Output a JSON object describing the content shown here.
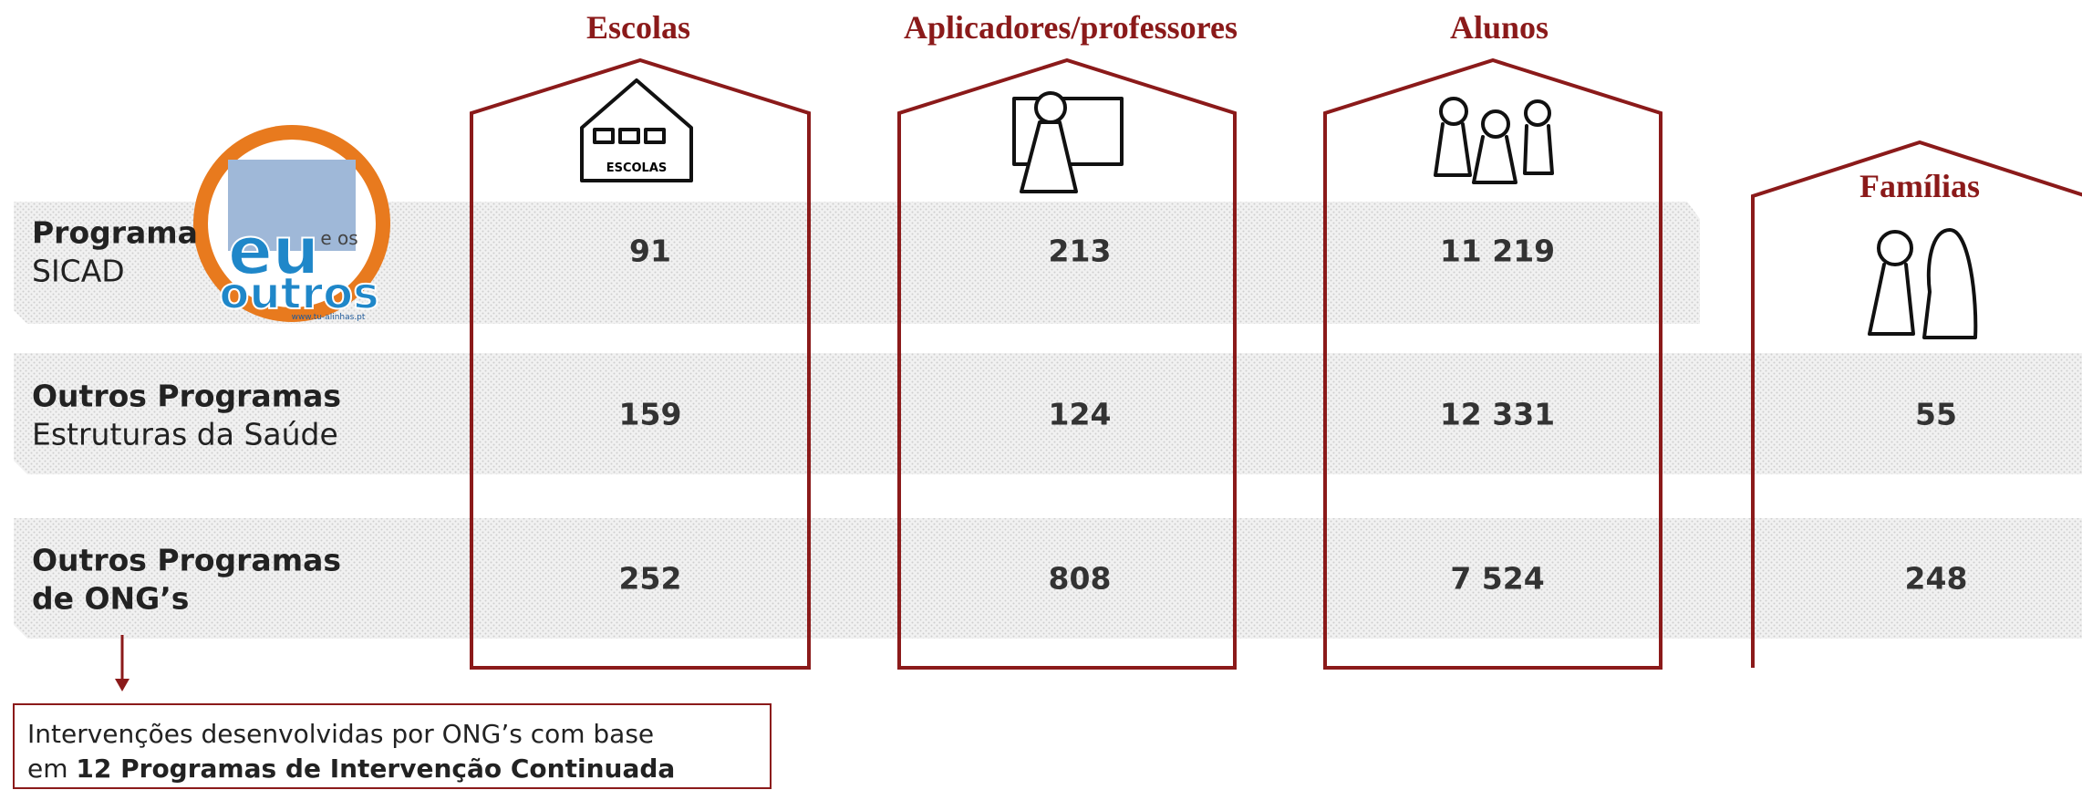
{
  "columns": [
    "Escolas",
    "Aplicadores/professores",
    "Alunos",
    "Famílias"
  ],
  "icon_label": "ESCOLAS",
  "logo": {
    "top": "e os",
    "main": "eu",
    "bottom": "outros",
    "url": "www.tu-alinhas.pt"
  },
  "rows": [
    {
      "title": "Programa",
      "subtitle": "SICAD",
      "values": [
        "91",
        "213",
        "11 219",
        null
      ]
    },
    {
      "title": "Outros Programas",
      "subtitle": "Estruturas da Saúde",
      "values": [
        "159",
        "124",
        "12 331",
        "55"
      ]
    },
    {
      "title": "Outros Programas",
      "subtitle": "de ONG’s",
      "values": [
        "252",
        "808",
        "7 524",
        "248"
      ]
    }
  ],
  "note": {
    "line1": "Intervenções desenvolvidas por ONG’s com base",
    "line2_prefix": "em ",
    "line2_bold": "12 Programas de Intervenção Continuada"
  }
}
